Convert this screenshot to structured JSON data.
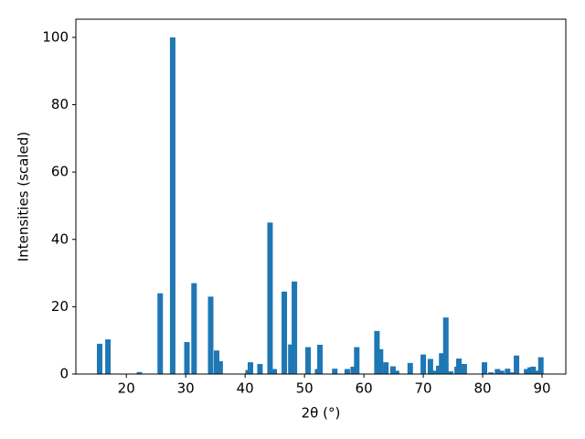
{
  "chart_data": {
    "type": "bar",
    "x_label": "2θ (°)",
    "y_label": "Intensities (scaled)",
    "x": [
      15.5,
      16.9,
      22.2,
      25.7,
      27.8,
      30.2,
      31.4,
      34.2,
      35.2,
      35.8,
      40.5,
      40.9,
      42.5,
      44.2,
      44.9,
      46.6,
      47.7,
      48.3,
      50.6,
      52.2,
      52.6,
      55.1,
      57.2,
      58.2,
      58.8,
      62.2,
      62.8,
      63.7,
      64.9,
      65.5,
      67.8,
      70.0,
      71.2,
      72.0,
      72.6,
      73.1,
      73.8,
      74.6,
      75.7,
      76.0,
      76.9,
      80.3,
      81.4,
      82.5,
      83.2,
      84.2,
      84.9,
      85.7,
      87.4,
      88.0,
      88.5,
      89.2,
      89.8
    ],
    "values": [
      9,
      10.3,
      0.6,
      24,
      100,
      9.5,
      27,
      23,
      7,
      3.8,
      1.2,
      3.5,
      3,
      45,
      1.5,
      24.5,
      8.8,
      27.5,
      8,
      1.5,
      8.7,
      1.6,
      1.5,
      2.2,
      8,
      12.8,
      7.4,
      3.5,
      2.3,
      1,
      3.3,
      5.8,
      4.5,
      1,
      2.5,
      6.2,
      16.8,
      0.8,
      2.2,
      4.6,
      3,
      3.5,
      0.5,
      1.5,
      1,
      1.6,
      0.5,
      5.5,
      1.5,
      2,
      2.2,
      1,
      5
    ],
    "color": "#1f77b4",
    "xlim": [
      11.5,
      94
    ],
    "xticks": [
      20,
      30,
      40,
      50,
      60,
      70,
      80,
      90
    ],
    "ylim": [
      0,
      105.4
    ],
    "yticks": [
      0,
      20,
      40,
      60,
      80,
      100
    ],
    "grid": false
  }
}
